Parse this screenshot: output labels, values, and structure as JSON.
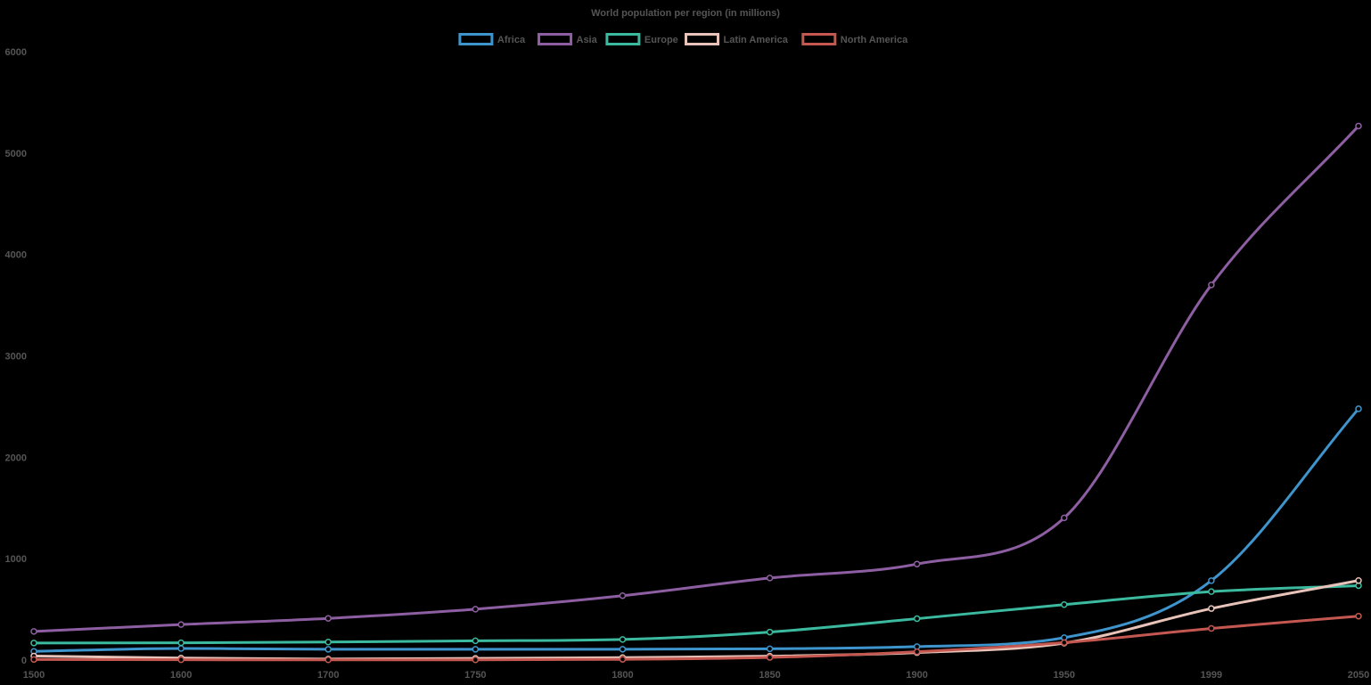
{
  "chart_data": {
    "type": "line",
    "title": "World population per region (in millions)",
    "xlabel": "",
    "ylabel": "",
    "x": [
      1500,
      1600,
      1700,
      1750,
      1800,
      1850,
      1900,
      1950,
      1999,
      2050
    ],
    "ylim": [
      0,
      6000
    ],
    "y_ticks": [
      0,
      1000,
      2000,
      3000,
      4000,
      5000,
      6000
    ],
    "grid": false,
    "legend_position": "top",
    "series": [
      {
        "name": "Africa",
        "color": "#3e95cd",
        "values": [
          86,
          114,
          106,
          106,
          107,
          111,
          133,
          221,
          783,
          2478
        ]
      },
      {
        "name": "Asia",
        "color": "#8e5ea2",
        "values": [
          282,
          350,
          411,
          502,
          635,
          809,
          947,
          1402,
          3700,
          5267
        ]
      },
      {
        "name": "Europe",
        "color": "#3cba9f",
        "values": [
          168,
          170,
          178,
          190,
          203,
          276,
          408,
          547,
          675,
          734
        ]
      },
      {
        "name": "Latin America",
        "color": "#e8c3b9",
        "values": [
          40,
          20,
          10,
          16,
          24,
          38,
          74,
          167,
          508,
          784
        ]
      },
      {
        "name": "North America",
        "color": "#c45850",
        "values": [
          6,
          3,
          2,
          2,
          7,
          26,
          82,
          172,
          312,
          433
        ]
      }
    ]
  }
}
